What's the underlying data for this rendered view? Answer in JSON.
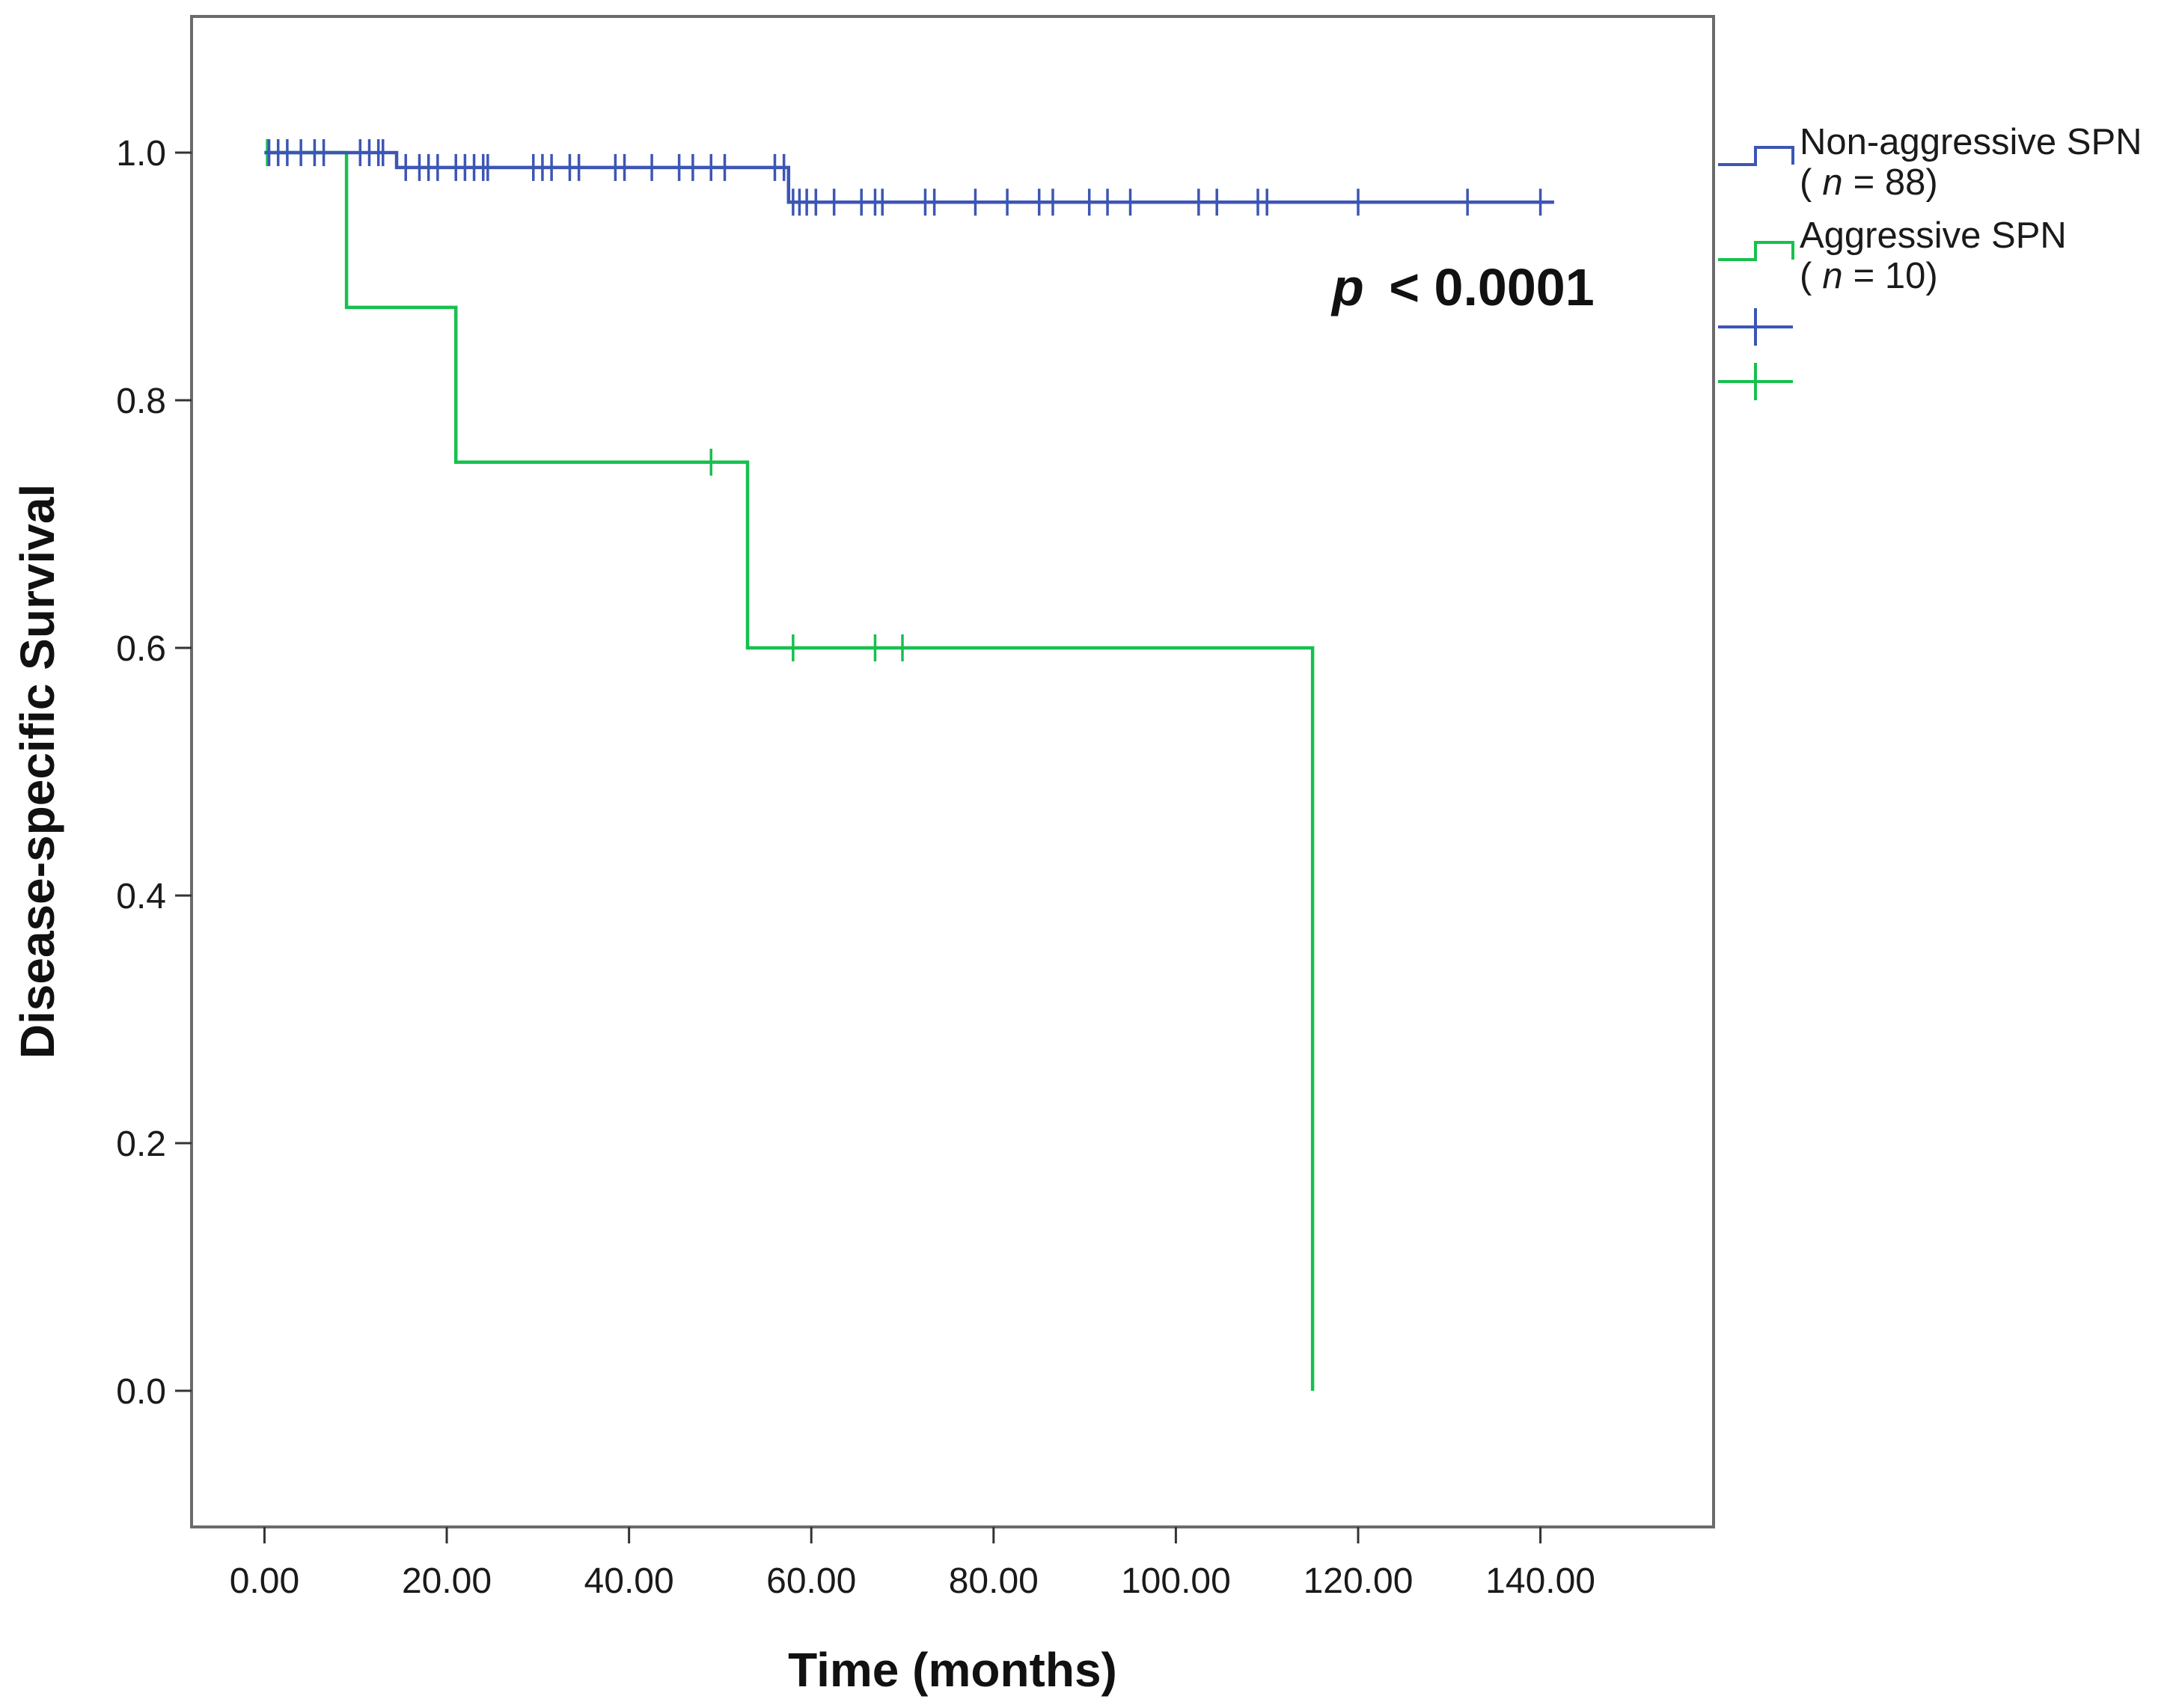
{
  "chart_data": {
    "type": "line",
    "subtype": "kaplan-meier-step",
    "xlabel": "Time (months)",
    "ylabel": "Disease-specific Survival",
    "xlim": [
      -8,
      159
    ],
    "ylim": [
      -0.11,
      1.11
    ],
    "x_ticks": [
      0,
      20,
      40,
      60,
      80,
      100,
      120,
      140
    ],
    "x_tick_labels": [
      "0.00",
      "20.00",
      "40.00",
      "60.00",
      "80.00",
      "100.00",
      "120.00",
      "140.00"
    ],
    "y_ticks": [
      0.0,
      0.2,
      0.4,
      0.6,
      0.8,
      1.0
    ],
    "y_tick_labels": [
      "0.0",
      "0.2",
      "0.4",
      "0.6",
      "0.8",
      "1.0"
    ],
    "annotation": {
      "p_symbol": "p",
      "p_text": "< 0.0001",
      "position": "top-right"
    },
    "legend_position": "right-outside",
    "series": [
      {
        "name": "Non-aggressive SPN",
        "n_label": "n",
        "n_value": "= 88",
        "color": "#3c56b4",
        "steps": [
          [
            0,
            1.0
          ],
          [
            14.5,
            1.0
          ],
          [
            14.5,
            0.988
          ],
          [
            57.5,
            0.988
          ],
          [
            57.5,
            0.96
          ],
          [
            141.5,
            0.96
          ]
        ],
        "censored": [
          [
            0.5,
            1.0
          ],
          [
            1.5,
            1.0
          ],
          [
            2.5,
            1.0
          ],
          [
            4.0,
            1.0
          ],
          [
            5.5,
            1.0
          ],
          [
            6.5,
            1.0
          ],
          [
            10.5,
            1.0
          ],
          [
            11.5,
            1.0
          ],
          [
            12.5,
            1.0
          ],
          [
            13.0,
            1.0
          ],
          [
            15.5,
            0.988
          ],
          [
            17.0,
            0.988
          ],
          [
            18.0,
            0.988
          ],
          [
            19.0,
            0.988
          ],
          [
            21.0,
            0.988
          ],
          [
            22.0,
            0.988
          ],
          [
            23.0,
            0.988
          ],
          [
            24.0,
            0.988
          ],
          [
            24.5,
            0.988
          ],
          [
            29.5,
            0.988
          ],
          [
            30.5,
            0.988
          ],
          [
            31.5,
            0.988
          ],
          [
            33.5,
            0.988
          ],
          [
            34.5,
            0.988
          ],
          [
            38.5,
            0.988
          ],
          [
            39.5,
            0.988
          ],
          [
            42.5,
            0.988
          ],
          [
            45.5,
            0.988
          ],
          [
            47.0,
            0.988
          ],
          [
            49.0,
            0.988
          ],
          [
            50.5,
            0.988
          ],
          [
            56.0,
            0.988
          ],
          [
            57.0,
            0.988
          ],
          [
            58.0,
            0.96
          ],
          [
            58.7,
            0.96
          ],
          [
            59.5,
            0.96
          ],
          [
            60.5,
            0.96
          ],
          [
            62.5,
            0.96
          ],
          [
            65.5,
            0.96
          ],
          [
            67.0,
            0.96
          ],
          [
            67.8,
            0.96
          ],
          [
            72.5,
            0.96
          ],
          [
            73.5,
            0.96
          ],
          [
            78.0,
            0.96
          ],
          [
            81.5,
            0.96
          ],
          [
            85.0,
            0.96
          ],
          [
            86.5,
            0.96
          ],
          [
            90.5,
            0.96
          ],
          [
            92.5,
            0.96
          ],
          [
            95.0,
            0.96
          ],
          [
            102.5,
            0.96
          ],
          [
            104.5,
            0.96
          ],
          [
            109.0,
            0.96
          ],
          [
            110.0,
            0.96
          ],
          [
            120.0,
            0.96
          ],
          [
            132.0,
            0.96
          ],
          [
            140.0,
            0.96
          ]
        ]
      },
      {
        "name": "Aggressive SPN",
        "n_label": "n",
        "n_value": "= 10",
        "color": "#17c04e",
        "steps": [
          [
            0,
            1.0
          ],
          [
            9.0,
            1.0
          ],
          [
            9.0,
            0.875
          ],
          [
            21.0,
            0.875
          ],
          [
            21.0,
            0.75
          ],
          [
            53.0,
            0.75
          ],
          [
            53.0,
            0.6
          ],
          [
            115.0,
            0.6
          ],
          [
            115.0,
            0.0
          ]
        ],
        "censored": [
          [
            0.3,
            1.0
          ],
          [
            49.0,
            0.75
          ],
          [
            58.0,
            0.6
          ],
          [
            67.0,
            0.6
          ],
          [
            70.0,
            0.6
          ]
        ]
      }
    ]
  }
}
